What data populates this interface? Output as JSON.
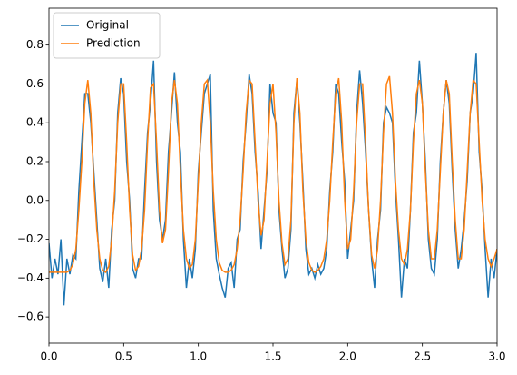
{
  "chart_data": {
    "type": "line",
    "x": [
      0,
      0.02,
      0.04,
      0.06,
      0.08,
      0.1,
      0.12,
      0.14,
      0.16,
      0.18,
      0.2,
      0.22,
      0.24,
      0.26,
      0.28,
      0.3,
      0.32,
      0.34,
      0.36,
      0.38,
      0.4,
      0.42,
      0.44,
      0.46,
      0.48,
      0.5,
      0.52,
      0.54,
      0.56,
      0.58,
      0.6,
      0.62,
      0.64,
      0.66,
      0.68,
      0.7,
      0.72,
      0.74,
      0.76,
      0.78,
      0.8,
      0.82,
      0.84,
      0.86,
      0.88,
      0.9,
      0.92,
      0.94,
      0.96,
      0.98,
      1,
      1.02,
      1.04,
      1.06,
      1.08,
      1.1,
      1.12,
      1.14,
      1.16,
      1.18,
      1.2,
      1.22,
      1.24,
      1.26,
      1.28,
      1.3,
      1.32,
      1.34,
      1.36,
      1.38,
      1.4,
      1.42,
      1.44,
      1.46,
      1.48,
      1.5,
      1.52,
      1.54,
      1.56,
      1.58,
      1.6,
      1.62,
      1.64,
      1.66,
      1.68,
      1.7,
      1.72,
      1.74,
      1.76,
      1.78,
      1.8,
      1.82,
      1.84,
      1.86,
      1.88,
      1.9,
      1.92,
      1.94,
      1.96,
      1.98,
      2,
      2.02,
      2.04,
      2.06,
      2.08,
      2.1,
      2.12,
      2.14,
      2.16,
      2.18,
      2.2,
      2.22,
      2.24,
      2.26,
      2.28,
      2.3,
      2.32,
      2.34,
      2.36,
      2.38,
      2.4,
      2.42,
      2.44,
      2.46,
      2.48,
      2.5,
      2.52,
      2.54,
      2.56,
      2.58,
      2.6,
      2.62,
      2.64,
      2.66,
      2.68,
      2.7,
      2.72,
      2.74,
      2.76,
      2.78,
      2.8,
      2.82,
      2.84,
      2.86,
      2.88,
      2.9,
      2.92,
      2.94,
      2.96,
      2.98,
      3
    ],
    "series": [
      {
        "name": "Original",
        "color": "#1f77b4",
        "values": [
          -0.22,
          -0.4,
          -0.3,
          -0.38,
          -0.2,
          -0.54,
          -0.3,
          -0.38,
          -0.28,
          -0.3,
          0.05,
          0.3,
          0.55,
          0.55,
          0.4,
          0.15,
          -0.1,
          -0.35,
          -0.42,
          -0.3,
          -0.45,
          -0.15,
          0.0,
          0.45,
          0.63,
          0.55,
          0.2,
          0.0,
          -0.35,
          -0.4,
          -0.3,
          -0.3,
          0.05,
          0.35,
          0.5,
          0.72,
          0.2,
          -0.1,
          -0.2,
          -0.1,
          0.25,
          0.45,
          0.66,
          0.4,
          0.25,
          -0.2,
          -0.45,
          -0.3,
          -0.4,
          -0.25,
          0.15,
          0.35,
          0.55,
          0.6,
          0.65,
          -0.05,
          -0.3,
          -0.38,
          -0.45,
          -0.5,
          -0.35,
          -0.32,
          -0.45,
          -0.2,
          -0.15,
          0.2,
          0.4,
          0.65,
          0.55,
          0.25,
          0.05,
          -0.25,
          -0.05,
          0.15,
          0.6,
          0.45,
          0.4,
          -0.05,
          -0.25,
          -0.4,
          -0.35,
          -0.15,
          0.45,
          0.62,
          0.4,
          0.1,
          -0.25,
          -0.38,
          -0.35,
          -0.4,
          -0.33,
          -0.38,
          -0.35,
          -0.25,
          0.05,
          0.25,
          0.6,
          0.55,
          0.3,
          0.1,
          -0.3,
          -0.15,
          0.0,
          0.45,
          0.67,
          0.5,
          0.25,
          -0.05,
          -0.3,
          -0.45,
          -0.2,
          -0.05,
          0.4,
          0.48,
          0.45,
          0.4,
          0.05,
          -0.2,
          -0.5,
          -0.3,
          -0.35,
          -0.05,
          0.35,
          0.45,
          0.72,
          0.5,
          0.2,
          -0.2,
          -0.35,
          -0.38,
          -0.2,
          0.2,
          0.45,
          0.62,
          0.5,
          0.15,
          -0.15,
          -0.35,
          -0.25,
          -0.1,
          0.1,
          0.45,
          0.55,
          0.76,
          0.25,
          0.05,
          -0.25,
          -0.5,
          -0.3,
          -0.4,
          -0.25
        ]
      },
      {
        "name": "Prediction",
        "color": "#ff7f0e",
        "values": [
          -0.37,
          -0.37,
          -0.37,
          -0.37,
          -0.37,
          -0.37,
          -0.37,
          -0.36,
          -0.33,
          -0.25,
          -0.05,
          0.2,
          0.5,
          0.62,
          0.45,
          0.1,
          -0.15,
          -0.3,
          -0.36,
          -0.37,
          -0.34,
          -0.2,
          0.05,
          0.4,
          0.6,
          0.6,
          0.3,
          -0.05,
          -0.28,
          -0.36,
          -0.34,
          -0.25,
          -0.05,
          0.3,
          0.58,
          0.6,
          0.3,
          -0.05,
          -0.22,
          -0.15,
          0.15,
          0.5,
          0.62,
          0.5,
          0.15,
          -0.15,
          -0.3,
          -0.35,
          -0.33,
          -0.2,
          0.1,
          0.4,
          0.6,
          0.62,
          0.4,
          0.05,
          -0.2,
          -0.32,
          -0.36,
          -0.37,
          -0.37,
          -0.36,
          -0.33,
          -0.25,
          -0.1,
          0.15,
          0.45,
          0.62,
          0.6,
          0.3,
          0.0,
          -0.18,
          -0.1,
          0.2,
          0.5,
          0.6,
          0.35,
          0.0,
          -0.22,
          -0.33,
          -0.3,
          -0.1,
          0.4,
          0.63,
          0.45,
          0.05,
          -0.2,
          -0.32,
          -0.36,
          -0.37,
          -0.36,
          -0.34,
          -0.3,
          -0.2,
          0.0,
          0.3,
          0.55,
          0.63,
          0.4,
          0.0,
          -0.25,
          -0.2,
          0.05,
          0.4,
          0.6,
          0.6,
          0.3,
          -0.05,
          -0.28,
          -0.35,
          -0.25,
          0.0,
          0.35,
          0.6,
          0.64,
          0.45,
          0.1,
          -0.15,
          -0.3,
          -0.33,
          -0.25,
          -0.05,
          0.3,
          0.55,
          0.62,
          0.5,
          0.15,
          -0.15,
          -0.3,
          -0.3,
          -0.15,
          0.15,
          0.45,
          0.62,
          0.55,
          0.2,
          -0.1,
          -0.3,
          -0.3,
          -0.15,
          0.15,
          0.45,
          0.62,
          0.6,
          0.3,
          0.0,
          -0.2,
          -0.3,
          -0.34,
          -0.3,
          -0.25
        ]
      }
    ],
    "xlim": [
      0,
      3
    ],
    "xticks": [
      {
        "value": 0,
        "label": "0.0"
      },
      0.5,
      {
        "value": 1,
        "label": "1.0"
      },
      1.5,
      {
        "value": 2,
        "label": "2.0"
      },
      2.5,
      {
        "value": 3,
        "label": "3.0"
      }
    ],
    "ylim": [
      -0.735,
      0.99
    ],
    "yticks": [
      {
        "value": -0.6,
        "label": "−0.6"
      },
      {
        "value": -0.4,
        "label": "−0.4"
      },
      {
        "value": -0.2,
        "label": "−0.2"
      },
      {
        "value": 0,
        "label": "0.0"
      },
      0.2,
      0.4,
      0.6,
      0.8
    ],
    "legend": "upper left"
  }
}
